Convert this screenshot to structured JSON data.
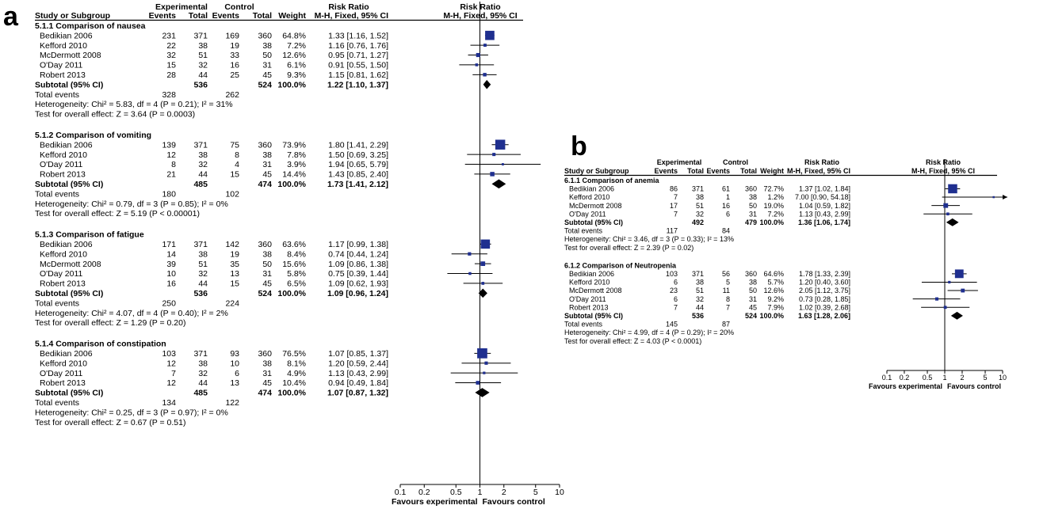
{
  "panels": [
    {
      "letter": "a",
      "headers": {
        "exp_group": "Experimental",
        "ctl_group": "Control",
        "rr_group": "Risk Ratio",
        "rr_method": "M-H, Fixed, 95% CI",
        "plot_group": "Risk Ratio",
        "plot_method": "M-H, Fixed, 95% CI",
        "study": "Study or Subgroup",
        "events": "Events",
        "total": "Total",
        "weight": "Weight"
      },
      "subgroups": [
        {
          "title": "5.1.1 Comparison of nausea",
          "studies": [
            {
              "name": "Bedikian 2006",
              "e_events": "231",
              "e_total": "371",
              "c_events": "169",
              "c_total": "360",
              "weight": "64.8%",
              "ci": "1.33 [1.16, 1.52]"
            },
            {
              "name": "Kefford 2010",
              "e_events": "22",
              "e_total": "38",
              "c_events": "19",
              "c_total": "38",
              "weight": "7.2%",
              "ci": "1.16 [0.76, 1.76]"
            },
            {
              "name": "McDermott 2008",
              "e_events": "32",
              "e_total": "51",
              "c_events": "33",
              "c_total": "50",
              "weight": "12.6%",
              "ci": "0.95 [0.71, 1.27]"
            },
            {
              "name": "O'Day 2011",
              "e_events": "15",
              "e_total": "32",
              "c_events": "16",
              "c_total": "31",
              "weight": "6.1%",
              "ci": "0.91 [0.55, 1.50]"
            },
            {
              "name": "Robert 2013",
              "e_events": "28",
              "e_total": "44",
              "c_events": "25",
              "c_total": "45",
              "weight": "9.3%",
              "ci": "1.15 [0.81, 1.62]"
            }
          ],
          "subtotal": {
            "label": "Subtotal (95% CI)",
            "e_total": "536",
            "c_total": "524",
            "weight": "100.0%",
            "ci": "1.22 [1.10, 1.37]"
          },
          "total_events": {
            "label": "Total events",
            "e": "328",
            "c": "262"
          },
          "heterogeneity": "Heterogeneity: Chi² = 5.83, df = 4 (P = 0.21); I² = 31%",
          "overall": "Test for overall effect: Z = 3.64 (P = 0.0003)"
        },
        {
          "title": "5.1.2 Comparison of vomiting",
          "studies": [
            {
              "name": "Bedikian 2006",
              "e_events": "139",
              "e_total": "371",
              "c_events": "75",
              "c_total": "360",
              "weight": "73.9%",
              "ci": "1.80 [1.41, 2.29]"
            },
            {
              "name": "Kefford 2010",
              "e_events": "12",
              "e_total": "38",
              "c_events": "8",
              "c_total": "38",
              "weight": "7.8%",
              "ci": "1.50 [0.69, 3.25]"
            },
            {
              "name": "O'Day 2011",
              "e_events": "8",
              "e_total": "32",
              "c_events": "4",
              "c_total": "31",
              "weight": "3.9%",
              "ci": "1.94 [0.65, 5.79]"
            },
            {
              "name": "Robert 2013",
              "e_events": "21",
              "e_total": "44",
              "c_events": "15",
              "c_total": "45",
              "weight": "14.4%",
              "ci": "1.43 [0.85, 2.40]"
            }
          ],
          "subtotal": {
            "label": "Subtotal (95% CI)",
            "e_total": "485",
            "c_total": "474",
            "weight": "100.0%",
            "ci": "1.73 [1.41, 2.12]"
          },
          "total_events": {
            "label": "Total events",
            "e": "180",
            "c": "102"
          },
          "heterogeneity": "Heterogeneity: Chi² = 0.79, df = 3 (P = 0.85); I² = 0%",
          "overall": "Test for overall effect: Z = 5.19 (P < 0.00001)"
        },
        {
          "title": "5.1.3 Comparison of fatigue",
          "studies": [
            {
              "name": "Bedikian 2006",
              "e_events": "171",
              "e_total": "371",
              "c_events": "142",
              "c_total": "360",
              "weight": "63.6%",
              "ci": "1.17 [0.99, 1.38]"
            },
            {
              "name": "Kefford 2010",
              "e_events": "14",
              "e_total": "38",
              "c_events": "19",
              "c_total": "38",
              "weight": "8.4%",
              "ci": "0.74 [0.44, 1.24]"
            },
            {
              "name": "McDermott 2008",
              "e_events": "39",
              "e_total": "51",
              "c_events": "35",
              "c_total": "50",
              "weight": "15.6%",
              "ci": "1.09 [0.86, 1.38]"
            },
            {
              "name": "O'Day 2011",
              "e_events": "10",
              "e_total": "32",
              "c_events": "13",
              "c_total": "31",
              "weight": "5.8%",
              "ci": "0.75 [0.39, 1.44]"
            },
            {
              "name": "Robert 2013",
              "e_events": "16",
              "e_total": "44",
              "c_events": "15",
              "c_total": "45",
              "weight": "6.5%",
              "ci": "1.09 [0.62, 1.93]"
            }
          ],
          "subtotal": {
            "label": "Subtotal (95% CI)",
            "e_total": "536",
            "c_total": "524",
            "weight": "100.0%",
            "ci": "1.09 [0.96, 1.24]"
          },
          "total_events": {
            "label": "Total events",
            "e": "250",
            "c": "224"
          },
          "heterogeneity": "Heterogeneity: Chi² = 4.07, df = 4 (P = 0.40); I² = 2%",
          "overall": "Test for overall effect: Z = 1.29 (P = 0.20)"
        },
        {
          "title": "5.1.4 Comparison of constipation",
          "studies": [
            {
              "name": "Bedikian 2006",
              "e_events": "103",
              "e_total": "371",
              "c_events": "93",
              "c_total": "360",
              "weight": "76.5%",
              "ci": "1.07 [0.85, 1.37]"
            },
            {
              "name": "Kefford 2010",
              "e_events": "12",
              "e_total": "38",
              "c_events": "10",
              "c_total": "38",
              "weight": "8.1%",
              "ci": "1.20 [0.59, 2.44]"
            },
            {
              "name": "O'Day 2011",
              "e_events": "7",
              "e_total": "32",
              "c_events": "6",
              "c_total": "31",
              "weight": "4.9%",
              "ci": "1.13 [0.43, 2.99]"
            },
            {
              "name": "Robert 2013",
              "e_events": "12",
              "e_total": "44",
              "c_events": "13",
              "c_total": "45",
              "weight": "10.4%",
              "ci": "0.94 [0.49, 1.84]"
            }
          ],
          "subtotal": {
            "label": "Subtotal (95% CI)",
            "e_total": "485",
            "c_total": "474",
            "weight": "100.0%",
            "ci": "1.07 [0.87, 1.32]"
          },
          "total_events": {
            "label": "Total events",
            "e": "134",
            "c": "122"
          },
          "heterogeneity": "Heterogeneity: Chi² = 0.25, df = 3 (P = 0.97); I² = 0%",
          "overall": "Test for overall effect: Z = 0.67 (P = 0.51)"
        }
      ],
      "axis": {
        "ticks": [
          "0.1",
          "0.2",
          "0.5",
          "1",
          "2",
          "5",
          "10"
        ],
        "left_label": "Favours experimental",
        "right_label": "Favours control"
      }
    },
    {
      "letter": "b",
      "headers": {
        "exp_group": "Experimental",
        "ctl_group": "Control",
        "rr_group": "Risk Ratio",
        "rr_method": "M-H, Fixed, 95% CI",
        "plot_group": "Risk Ratio",
        "plot_method": "M-H, Fixed, 95% CI",
        "study": "Study or Subgroup",
        "events": "Events",
        "total": "Total",
        "weight": "Weight"
      },
      "subgroups": [
        {
          "title": "6.1.1 Comparison of anemia",
          "studies": [
            {
              "name": "Bedikian 2006",
              "e_events": "86",
              "e_total": "371",
              "c_events": "61",
              "c_total": "360",
              "weight": "72.7%",
              "ci": "1.37 [1.02, 1.84]"
            },
            {
              "name": "Kefford 2010",
              "e_events": "7",
              "e_total": "38",
              "c_events": "1",
              "c_total": "38",
              "weight": "1.2%",
              "ci": "7.00 [0.90, 54.18]"
            },
            {
              "name": "McDermott 2008",
              "e_events": "17",
              "e_total": "51",
              "c_events": "16",
              "c_total": "50",
              "weight": "19.0%",
              "ci": "1.04 [0.59, 1.82]"
            },
            {
              "name": "O'Day 2011",
              "e_events": "7",
              "e_total": "32",
              "c_events": "6",
              "c_total": "31",
              "weight": "7.2%",
              "ci": "1.13 [0.43, 2.99]"
            }
          ],
          "subtotal": {
            "label": "Subtotal (95% CI)",
            "e_total": "492",
            "c_total": "479",
            "weight": "100.0%",
            "ci": "1.36 [1.06, 1.74]"
          },
          "total_events": {
            "label": "Total events",
            "e": "117",
            "c": "84"
          },
          "heterogeneity": "Heterogeneity: Chi² = 3.46, df = 3 (P = 0.33); I² = 13%",
          "overall": "Test for overall effect: Z = 2.39 (P = 0.02)"
        },
        {
          "title": "6.1.2 Comparison of Neutropenia",
          "studies": [
            {
              "name": "Bedikian 2006",
              "e_events": "103",
              "e_total": "371",
              "c_events": "56",
              "c_total": "360",
              "weight": "64.6%",
              "ci": "1.78 [1.33, 2.39]"
            },
            {
              "name": "Kefford 2010",
              "e_events": "6",
              "e_total": "38",
              "c_events": "5",
              "c_total": "38",
              "weight": "5.7%",
              "ci": "1.20 [0.40, 3.60]"
            },
            {
              "name": "McDermott 2008",
              "e_events": "23",
              "e_total": "51",
              "c_events": "11",
              "c_total": "50",
              "weight": "12.6%",
              "ci": "2.05 [1.12, 3.75]"
            },
            {
              "name": "O'Day 2011",
              "e_events": "6",
              "e_total": "32",
              "c_events": "8",
              "c_total": "31",
              "weight": "9.2%",
              "ci": "0.73 [0.28, 1.85]"
            },
            {
              "name": "Robert 2013",
              "e_events": "7",
              "e_total": "44",
              "c_events": "7",
              "c_total": "45",
              "weight": "7.9%",
              "ci": "1.02 [0.39, 2.68]"
            }
          ],
          "subtotal": {
            "label": "Subtotal (95% CI)",
            "e_total": "536",
            "c_total": "524",
            "weight": "100.0%",
            "ci": "1.63 [1.28, 2.06]"
          },
          "total_events": {
            "label": "Total events",
            "e": "145",
            "c": "87"
          },
          "heterogeneity": "Heterogeneity: Chi² = 4.99, df = 4 (P = 0.29); I² = 20%",
          "overall": "Test for overall effect: Z = 4.03 (P < 0.0001)"
        }
      ],
      "axis": {
        "ticks": [
          "0.1",
          "0.2",
          "0.5",
          "1",
          "2",
          "5",
          "10"
        ],
        "left_label": "Favours experimental",
        "right_label": "Favours control"
      }
    }
  ],
  "chart_data": [
    {
      "type": "forest",
      "scale": "log",
      "xlim": [
        0.1,
        10
      ],
      "x_ticks": [
        0.1,
        0.2,
        0.5,
        1,
        2,
        5,
        10
      ],
      "null_line": 1,
      "colors": {
        "study_marker": "#1f2f8f",
        "diamond": "#000000",
        "line": "#000000"
      },
      "subgroups": [
        {
          "title": "5.1.1 Comparison of nausea",
          "estimates": [
            [
              1.33,
              1.16,
              1.52,
              64.8
            ],
            [
              1.16,
              0.76,
              1.76,
              7.2
            ],
            [
              0.95,
              0.71,
              1.27,
              12.6
            ],
            [
              0.91,
              0.55,
              1.5,
              6.1
            ],
            [
              1.15,
              0.81,
              1.62,
              9.3
            ]
          ],
          "pooled": [
            1.22,
            1.1,
            1.37
          ]
        },
        {
          "title": "5.1.2 Comparison of vomiting",
          "estimates": [
            [
              1.8,
              1.41,
              2.29,
              73.9
            ],
            [
              1.5,
              0.69,
              3.25,
              7.8
            ],
            [
              1.94,
              0.65,
              5.79,
              3.9
            ],
            [
              1.43,
              0.85,
              2.4,
              14.4
            ]
          ],
          "pooled": [
            1.73,
            1.41,
            2.12
          ]
        },
        {
          "title": "5.1.3 Comparison of fatigue",
          "estimates": [
            [
              1.17,
              0.99,
              1.38,
              63.6
            ],
            [
              0.74,
              0.44,
              1.24,
              8.4
            ],
            [
              1.09,
              0.86,
              1.38,
              15.6
            ],
            [
              0.75,
              0.39,
              1.44,
              5.8
            ],
            [
              1.09,
              0.62,
              1.93,
              6.5
            ]
          ],
          "pooled": [
            1.09,
            0.96,
            1.24
          ]
        },
        {
          "title": "5.1.4 Comparison of constipation",
          "estimates": [
            [
              1.07,
              0.85,
              1.37,
              76.5
            ],
            [
              1.2,
              0.59,
              2.44,
              8.1
            ],
            [
              1.13,
              0.43,
              2.99,
              4.9
            ],
            [
              0.94,
              0.49,
              1.84,
              10.4
            ]
          ],
          "pooled": [
            1.07,
            0.87,
            1.32
          ]
        }
      ]
    },
    {
      "type": "forest",
      "scale": "log",
      "xlim": [
        0.1,
        10
      ],
      "x_ticks": [
        0.1,
        0.2,
        0.5,
        1,
        2,
        5,
        10
      ],
      "null_line": 1,
      "colors": {
        "study_marker": "#1f2f8f",
        "diamond": "#000000",
        "line": "#000000"
      },
      "subgroups": [
        {
          "title": "6.1.1 Comparison of anemia",
          "estimates": [
            [
              1.37,
              1.02,
              1.84,
              72.7
            ],
            [
              7.0,
              0.9,
              54.18,
              1.2
            ],
            [
              1.04,
              0.59,
              1.82,
              19.0
            ],
            [
              1.13,
              0.43,
              2.99,
              7.2
            ]
          ],
          "pooled": [
            1.36,
            1.06,
            1.74
          ]
        },
        {
          "title": "6.1.2 Comparison of Neutropenia",
          "estimates": [
            [
              1.78,
              1.33,
              2.39,
              64.6
            ],
            [
              1.2,
              0.4,
              3.6,
              5.7
            ],
            [
              2.05,
              1.12,
              3.75,
              12.6
            ],
            [
              0.73,
              0.28,
              1.85,
              9.2
            ],
            [
              1.02,
              0.39,
              2.68,
              7.9
            ]
          ],
          "pooled": [
            1.63,
            1.28,
            2.06
          ]
        }
      ]
    }
  ]
}
